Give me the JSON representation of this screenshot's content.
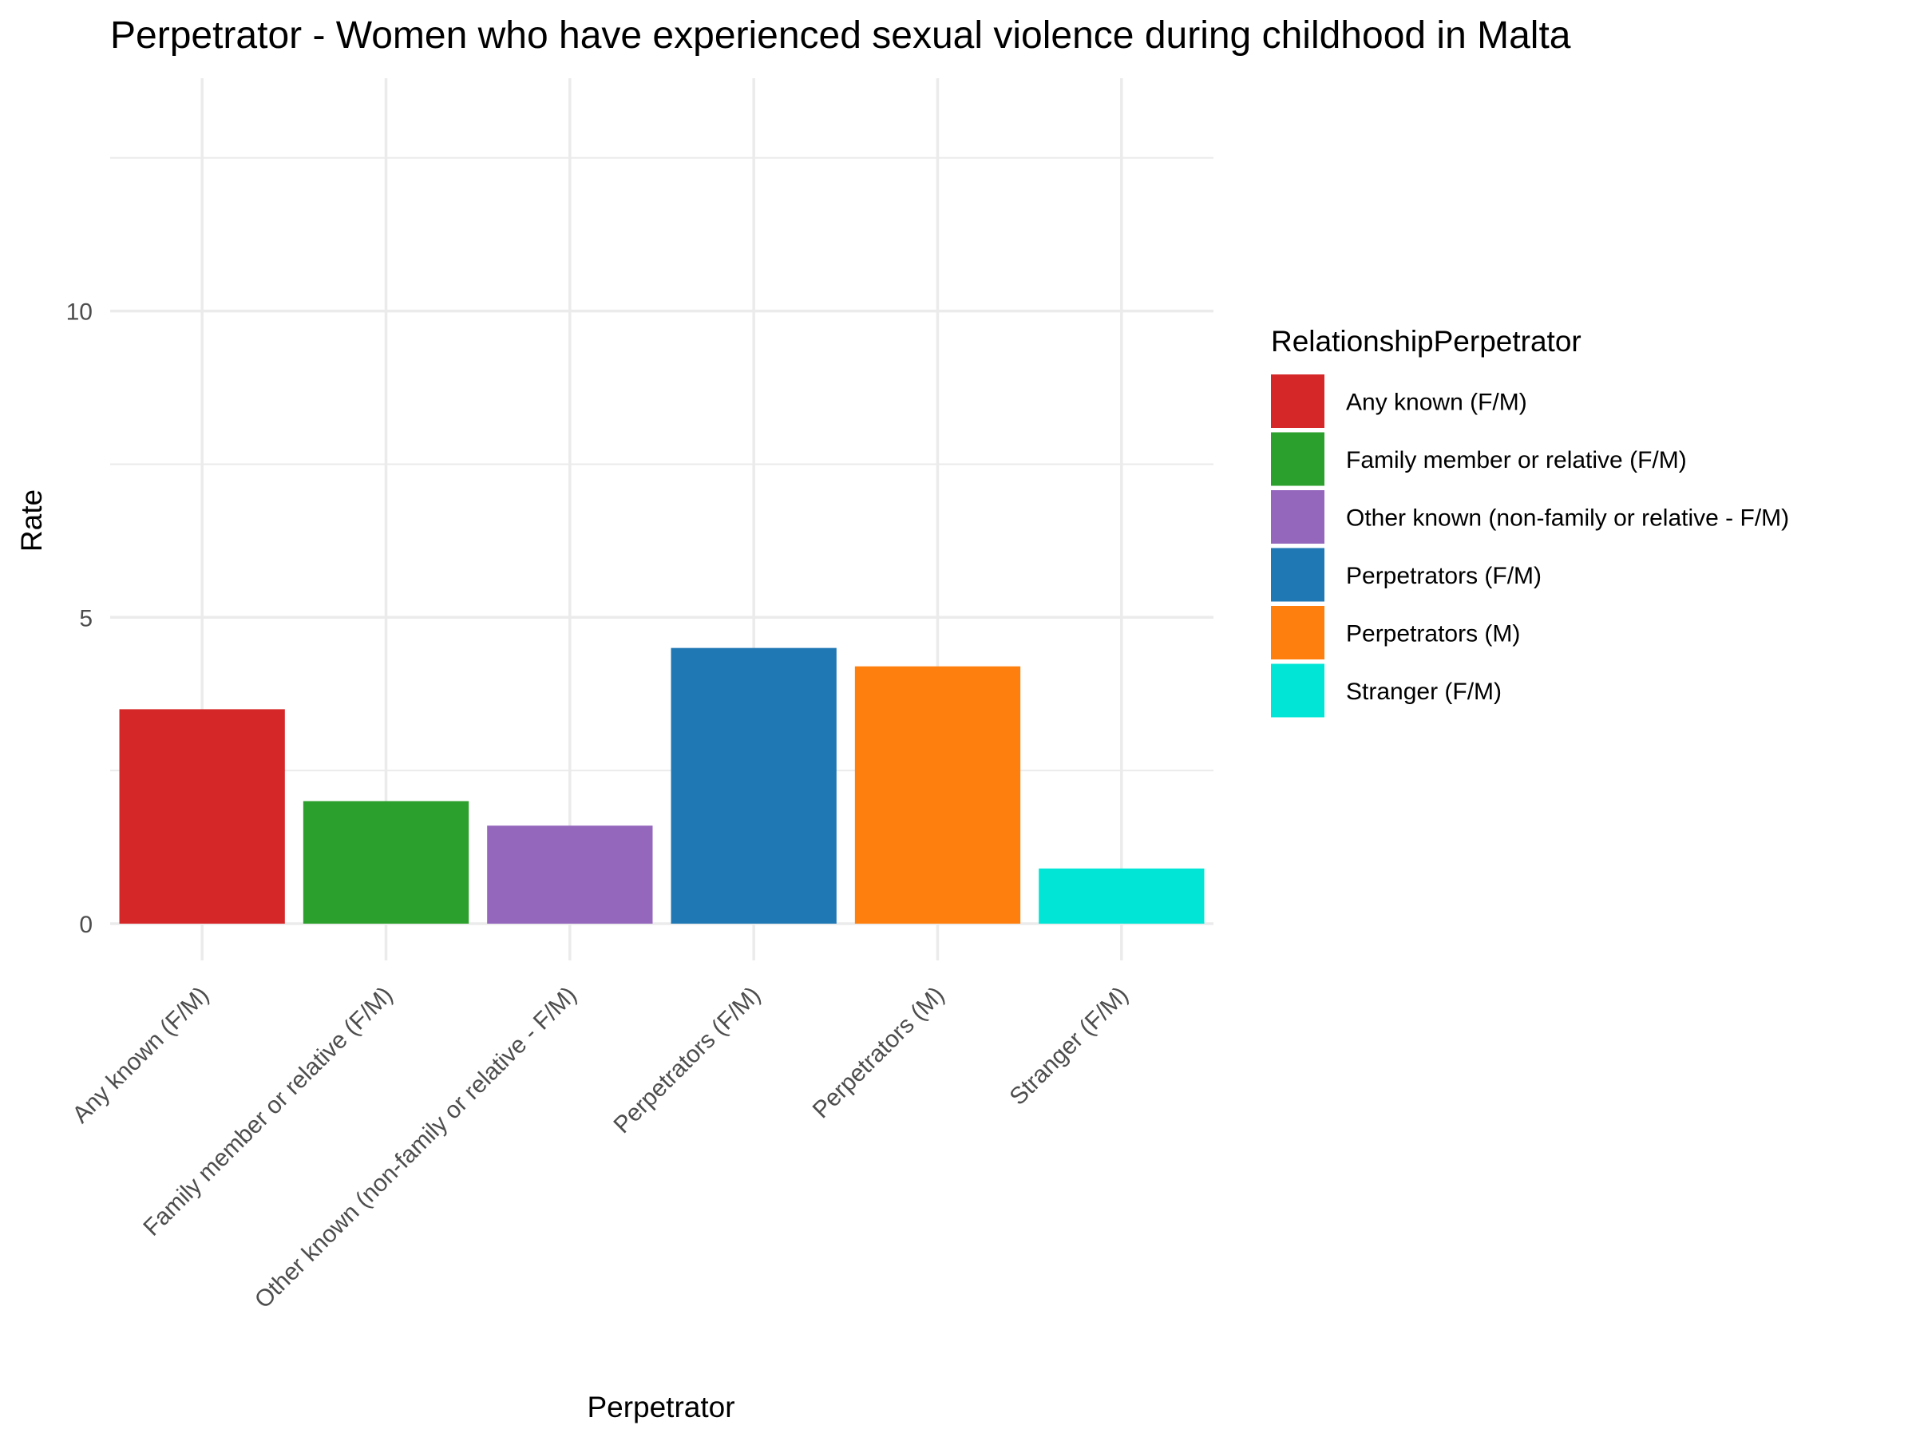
{
  "chart_data": {
    "type": "bar",
    "title": "Perpetrator - Women who have experienced sexual violence during childhood in Malta",
    "xlabel": "Perpetrator",
    "ylabel": "Rate",
    "categories": [
      "Any known (F/M)",
      "Family member or relative (F/M)",
      "Other known (non-family or relative - F/M)",
      "Perpetrators (F/M)",
      "Perpetrators (M)",
      "Stranger (F/M)"
    ],
    "values": [
      3.5,
      2.0,
      1.6,
      4.5,
      4.2,
      0.9
    ],
    "colors": [
      "#d62728",
      "#2ca02c",
      "#9467bd",
      "#1f77b4",
      "#ff7f0e",
      "#00e5d5"
    ],
    "ylim": [
      -0.6,
      13.8
    ],
    "yticks": [
      0,
      5,
      10
    ],
    "grid": true,
    "legend": {
      "title": "RelationshipPerpetrator",
      "position": "right",
      "entries": [
        "Any known (F/M)",
        "Family member or relative (F/M)",
        "Other known (non-family or relative - F/M)",
        "Perpetrators (F/M)",
        "Perpetrators (M)",
        "Stranger (F/M)"
      ]
    }
  }
}
